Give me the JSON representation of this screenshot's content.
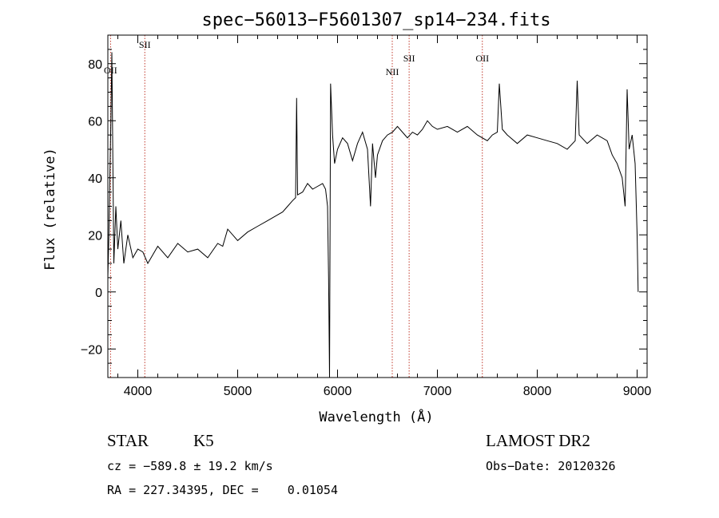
{
  "chart_data": {
    "type": "line",
    "title": "spec−56013−F5601307_sp14−234.fits",
    "xlabel": "Wavelength (Å)",
    "ylabel": "Flux (relative)",
    "xlim": [
      3700,
      9100
    ],
    "ylim": [
      -30,
      90
    ],
    "x_ticks": [
      4000,
      5000,
      6000,
      7000,
      8000,
      9000
    ],
    "x_tick_labels": [
      "4000",
      "5000",
      "6000",
      "7000",
      "8000",
      "9000"
    ],
    "y_ticks": [
      -20,
      0,
      20,
      40,
      60,
      80
    ],
    "y_tick_labels": [
      "−20",
      "0",
      "20",
      "40",
      "60",
      "80"
    ],
    "grid": false,
    "lines": [
      {
        "label": "OII",
        "x": 3727
      },
      {
        "label": "SII",
        "x": 4070
      },
      {
        "label": "NII",
        "x": 6548
      },
      {
        "label": "SII",
        "x": 6717
      },
      {
        "label": "OII",
        "x": 7450
      }
    ],
    "series": [
      {
        "x": [
          3700,
          3710,
          3720,
          3730,
          3740,
          3750,
          3760,
          3780,
          3800,
          3830,
          3860,
          3900,
          3950,
          4000,
          4050,
          4100,
          4200,
          4300,
          4400,
          4500,
          4600,
          4700,
          4800,
          4850,
          4900,
          5000,
          5100,
          5200,
          5300,
          5400,
          5450,
          5500,
          5550,
          5580,
          5590,
          5600,
          5650,
          5700,
          5750,
          5800,
          5850,
          5880,
          5900,
          5910,
          5920,
          5930,
          5950,
          5970,
          6000,
          6050,
          6100,
          6150,
          6200,
          6250,
          6300,
          6330,
          6350,
          6380,
          6400,
          6450,
          6500,
          6550,
          6600,
          6700,
          6750,
          6800,
          6850,
          6900,
          6950,
          7000,
          7100,
          7200,
          7300,
          7400,
          7500,
          7550,
          7600,
          7620,
          7650,
          7700,
          7800,
          7900,
          8000,
          8100,
          8200,
          8300,
          8380,
          8400,
          8420,
          8500,
          8600,
          8700,
          8750,
          8800,
          8850,
          8880,
          8900,
          8920,
          8950,
          8980,
          9000,
          9010
        ],
        "y": [
          5,
          20,
          40,
          60,
          84,
          45,
          10,
          30,
          15,
          25,
          10,
          20,
          12,
          15,
          14,
          10,
          16,
          12,
          17,
          14,
          15,
          12,
          17,
          16,
          22,
          18,
          21,
          23,
          25,
          27,
          28,
          30,
          32,
          33,
          68,
          34,
          35,
          38,
          36,
          37,
          38,
          36,
          30,
          5,
          -30,
          73,
          55,
          45,
          50,
          54,
          52,
          46,
          52,
          56,
          50,
          30,
          52,
          40,
          48,
          53,
          55,
          56,
          58,
          54,
          56,
          55,
          57,
          60,
          58,
          57,
          58,
          56,
          58,
          55,
          53,
          55,
          56,
          73,
          57,
          55,
          52,
          55,
          54,
          53,
          52,
          50,
          53,
          74,
          55,
          52,
          55,
          53,
          48,
          45,
          40,
          30,
          71,
          50,
          55,
          45,
          20,
          0
        ]
      }
    ]
  },
  "info": {
    "object_class": "STAR",
    "subclass": "K5",
    "survey": "LAMOST DR2",
    "cz": "cz = −589.8 ± 19.2 km/s",
    "obs_date": "Obs−Date: 20120326",
    "radec": "RA = 227.34395, DEC =    0.01054"
  },
  "colors": {
    "spectrum": "#000000",
    "line_markers": "#c0392b",
    "axes": "#000000"
  }
}
